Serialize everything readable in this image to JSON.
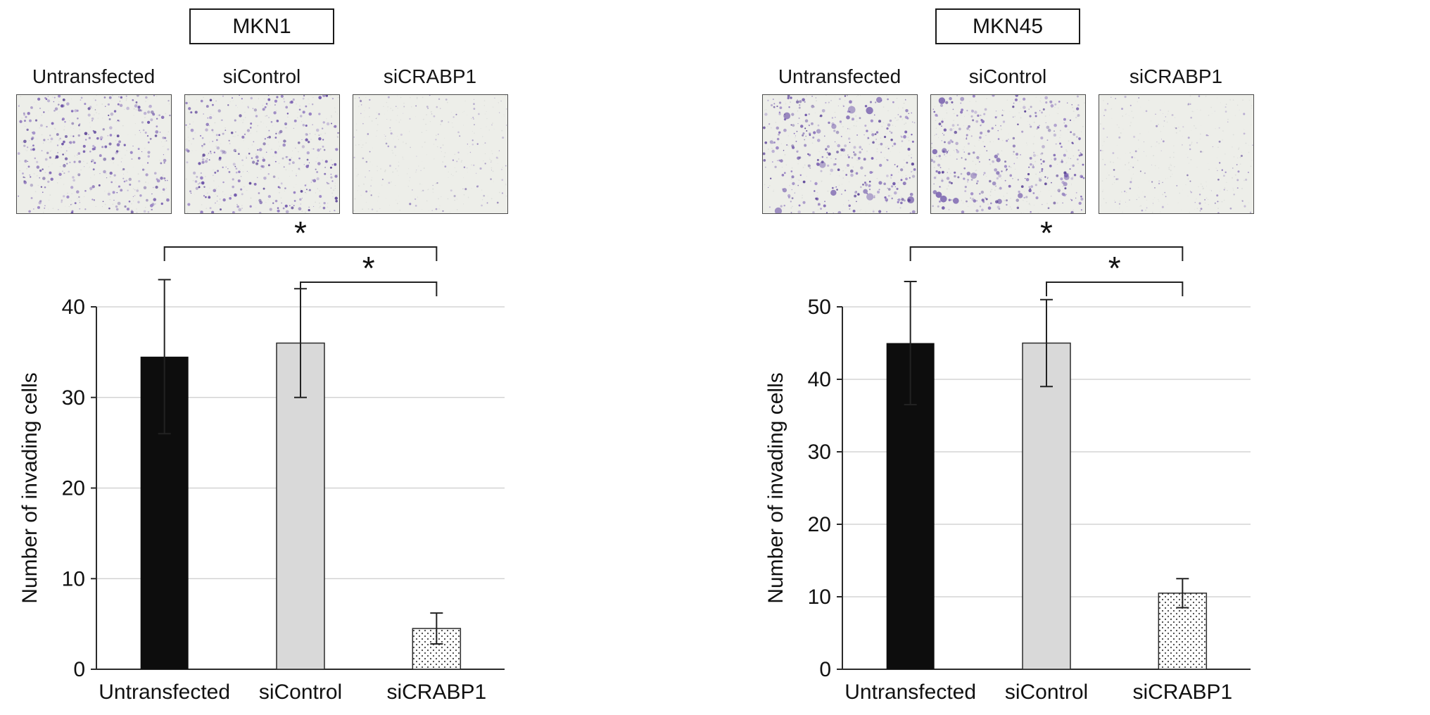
{
  "figure": {
    "panels": [
      {
        "title": "MKN1",
        "micrographs": [
          {
            "label": "Untransfected",
            "stain_density": "high",
            "clustered": false
          },
          {
            "label": "siControl",
            "stain_density": "high",
            "clustered": false
          },
          {
            "label": "siCRABP1",
            "stain_density": "low",
            "clustered": false
          }
        ],
        "significance_brackets": [
          {
            "from": "Untransfected",
            "to": "siCRABP1",
            "label": "*"
          },
          {
            "from": "siControl",
            "to": "siCRABP1",
            "label": "*"
          }
        ]
      },
      {
        "title": "MKN45",
        "micrographs": [
          {
            "label": "Untransfected",
            "stain_density": "high",
            "clustered": true
          },
          {
            "label": "siControl",
            "stain_density": "high",
            "clustered": true
          },
          {
            "label": "siCRABP1",
            "stain_density": "low",
            "clustered": false
          }
        ],
        "significance_brackets": [
          {
            "from": "Untransfected",
            "to": "siCRABP1",
            "label": "*"
          },
          {
            "from": "siControl",
            "to": "siCRABP1",
            "label": "*"
          }
        ]
      }
    ]
  },
  "chart_data": [
    {
      "type": "bar",
      "title": "MKN1",
      "categories": [
        "Untransfected",
        "siControl",
        "siCRABP1"
      ],
      "values": [
        34.5,
        36,
        4.5
      ],
      "error_bars": [
        8.5,
        6,
        1.7
      ],
      "ylabel": "Number of invading cells",
      "xlabel": "",
      "ylim": [
        0,
        40
      ],
      "yticks": [
        0,
        10,
        20,
        30,
        40
      ],
      "grid": true,
      "legend": false,
      "bar_styles": [
        "solid-black",
        "solid-lightgray",
        "dotted-white"
      ]
    },
    {
      "type": "bar",
      "title": "MKN45",
      "categories": [
        "Untransfected",
        "siControl",
        "siCRABP1"
      ],
      "values": [
        45,
        45,
        10.5
      ],
      "error_bars": [
        8.5,
        6,
        2
      ],
      "ylabel": "Number of invading cells",
      "xlabel": "",
      "ylim": [
        0,
        50
      ],
      "yticks": [
        0,
        10,
        20,
        30,
        40,
        50
      ],
      "grid": true,
      "legend": false,
      "bar_styles": [
        "solid-black",
        "solid-lightgray",
        "dotted-white"
      ]
    }
  ],
  "colors": {
    "bar_black": "#0d0d0d",
    "bar_gray": "#d9d9d9",
    "bar_outline": "#2b2b2b",
    "axis": "#2b2b2b",
    "grid": "#cccccc",
    "stain_purple": "#6b51a8"
  }
}
